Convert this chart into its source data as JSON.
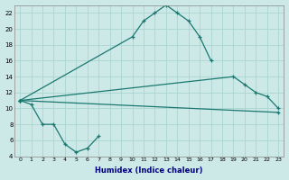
{
  "xlabel": "Humidex (Indice chaleur)",
  "bg_color": "#cce9e7",
  "grid_color": "#aad4d0",
  "line_color": "#1a7870",
  "xlim": [
    -0.5,
    23.5
  ],
  "ylim": [
    4,
    23
  ],
  "xticks": [
    0,
    1,
    2,
    3,
    4,
    5,
    6,
    7,
    8,
    9,
    10,
    11,
    12,
    13,
    14,
    15,
    16,
    17,
    18,
    19,
    20,
    21,
    22,
    23
  ],
  "yticks": [
    4,
    6,
    8,
    10,
    12,
    14,
    16,
    18,
    20,
    22
  ],
  "series": [
    {
      "x": [
        0,
        10,
        11,
        12,
        13,
        14,
        15,
        16,
        17
      ],
      "y": [
        11,
        19,
        21,
        22,
        23,
        22,
        21,
        19,
        16
      ]
    },
    {
      "x": [
        0,
        1,
        2,
        3,
        4,
        5,
        6,
        7
      ],
      "y": [
        11,
        10.5,
        8,
        8,
        5.5,
        4.5,
        5,
        6.5
      ]
    },
    {
      "x": [
        0,
        19,
        20,
        21,
        22,
        23
      ],
      "y": [
        11,
        14,
        13,
        12,
        11.5,
        10
      ]
    },
    {
      "x": [
        0,
        23
      ],
      "y": [
        11,
        9.5
      ]
    }
  ]
}
